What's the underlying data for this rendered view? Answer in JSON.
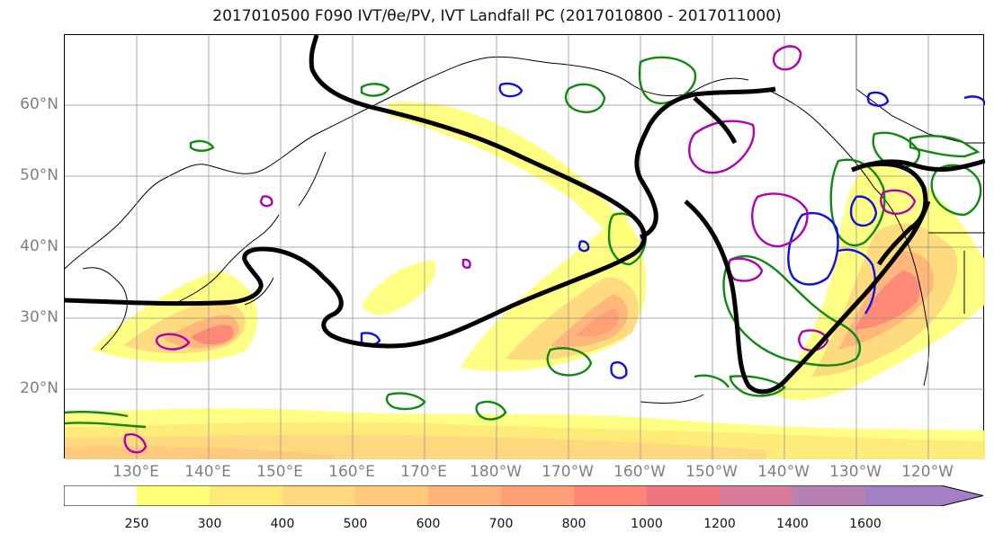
{
  "title": "2017010500 F090 IVT/θe/PV, IVT Landfall PC (2017010800 - 2017011000)",
  "map": {
    "projection": "equirectangular",
    "domain": "North Pacific",
    "lat_labels": [
      "60°N",
      "50°N",
      "40°N",
      "30°N",
      "20°N"
    ],
    "lon_labels": [
      "130°E",
      "140°E",
      "150°E",
      "160°E",
      "170°E",
      "180°W",
      "170°W",
      "160°W",
      "150°W",
      "140°W",
      "130°W",
      "120°W"
    ],
    "gridlines": true,
    "contour_colors": {
      "theta_e": "#000000",
      "pv_high": "#1010e0",
      "pv_mid": "#b000b0",
      "landfall_pc": "#118811"
    }
  },
  "colorbar": {
    "units_hint": "IVT",
    "levels": [
      "250",
      "300",
      "400",
      "500",
      "600",
      "700",
      "800",
      "1000",
      "1200",
      "1400",
      "1600"
    ],
    "colors": [
      "#ffff77",
      "#ffe977",
      "#ffd77f",
      "#ffc97b",
      "#ffb37a",
      "#ff9f77",
      "#ff8577",
      "#f07480",
      "#d87a99",
      "#b680b4",
      "#a57fc6"
    ],
    "extend": "max"
  }
}
